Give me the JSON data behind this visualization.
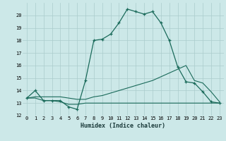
{
  "xlabel": "Humidex (Indice chaleur)",
  "xlim": [
    -0.5,
    23.5
  ],
  "ylim": [
    12,
    21
  ],
  "yticks": [
    12,
    13,
    14,
    15,
    16,
    17,
    18,
    19,
    20
  ],
  "xticks": [
    0,
    1,
    2,
    3,
    4,
    5,
    6,
    7,
    8,
    9,
    10,
    11,
    12,
    13,
    14,
    15,
    16,
    17,
    18,
    19,
    20,
    21,
    22,
    23
  ],
  "bg_color": "#cce8e8",
  "grid_color": "#aacccc",
  "line_color": "#1a6a5a",
  "line1_x": [
    0,
    1,
    2,
    3,
    4,
    5,
    6,
    7,
    8,
    9,
    10,
    11,
    12,
    13,
    14,
    15,
    16,
    17,
    18,
    19,
    20,
    21,
    22,
    23
  ],
  "line1_y": [
    13.4,
    14.0,
    13.2,
    13.2,
    13.2,
    12.7,
    12.5,
    14.8,
    18.0,
    18.1,
    18.5,
    19.4,
    20.5,
    20.3,
    20.1,
    20.3,
    19.4,
    18.0,
    15.9,
    14.7,
    14.6,
    13.9,
    13.1,
    13.0
  ],
  "line2_x": [
    0,
    1,
    2,
    3,
    4,
    5,
    6,
    7,
    8,
    9,
    10,
    11,
    12,
    13,
    14,
    15,
    16,
    17,
    18,
    19,
    20,
    21,
    22,
    23
  ],
  "line2_y": [
    13.4,
    13.5,
    13.5,
    13.5,
    13.5,
    13.4,
    13.3,
    13.3,
    13.5,
    13.6,
    13.8,
    14.0,
    14.2,
    14.4,
    14.6,
    14.8,
    15.1,
    15.4,
    15.7,
    16.0,
    14.8,
    14.6,
    13.9,
    13.1
  ],
  "line3_x": [
    0,
    1,
    2,
    3,
    4,
    5,
    6,
    7,
    8,
    9,
    10,
    11,
    12,
    13,
    14,
    15,
    16,
    17,
    18,
    19,
    20,
    21,
    22,
    23
  ],
  "line3_y": [
    13.4,
    13.4,
    13.2,
    13.2,
    13.1,
    12.9,
    12.9,
    13.0,
    13.0,
    13.0,
    13.0,
    13.0,
    13.0,
    13.0,
    13.0,
    13.0,
    13.0,
    13.0,
    13.0,
    13.0,
    13.0,
    13.0,
    13.0,
    13.0
  ]
}
